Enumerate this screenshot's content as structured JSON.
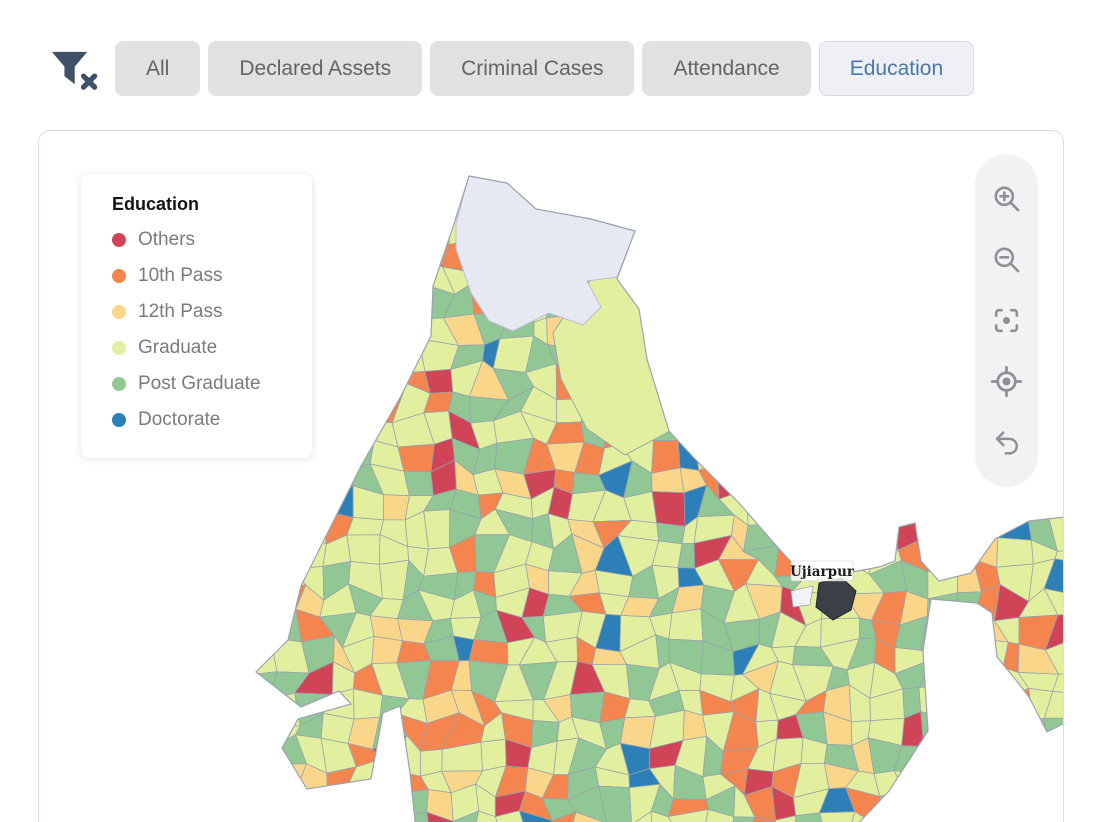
{
  "toolbar": {
    "filter_icon": "filter-clear-icon",
    "tabs": [
      {
        "label": "All",
        "active": false
      },
      {
        "label": "Declared Assets",
        "active": false
      },
      {
        "label": "Criminal Cases",
        "active": false
      },
      {
        "label": "Attendance",
        "active": false
      },
      {
        "label": "Education",
        "active": true
      }
    ],
    "active_tab_color": "#4a76a8"
  },
  "legend": {
    "title": "Education",
    "items": [
      {
        "label": "Others",
        "color": "#d04458"
      },
      {
        "label": "10th Pass",
        "color": "#f5854f"
      },
      {
        "label": "12th Pass",
        "color": "#f9d68a"
      },
      {
        "label": "Graduate",
        "color": "#e2ef9e"
      },
      {
        "label": "Post Graduate",
        "color": "#90c794"
      },
      {
        "label": "Doctorate",
        "color": "#2d7fb8"
      }
    ]
  },
  "map": {
    "tooltip": {
      "label": "Ujiarpur"
    },
    "highlighted_constituency": {
      "name": "Ujiarpur",
      "color": "#3a4046"
    },
    "no_data_color": "#e7e9f2",
    "no_data_border": "#b8bed0",
    "cell_border_color": "#97a1ac",
    "outline_color": "#9aa3ae",
    "sea_color": "#ffffff",
    "controls": [
      {
        "name": "zoom-in"
      },
      {
        "name": "zoom-out"
      },
      {
        "name": "center-map"
      },
      {
        "name": "locate"
      },
      {
        "name": "reset-view"
      }
    ]
  },
  "chart_data": {
    "type": "choropleth",
    "region": "India parliamentary constituencies",
    "measure": "Education",
    "categories": [
      "Others",
      "10th Pass",
      "12th Pass",
      "Graduate",
      "Post Graduate",
      "Doctorate"
    ],
    "colors": [
      "#d04458",
      "#f5854f",
      "#f9d68a",
      "#e2ef9e",
      "#90c794",
      "#2d7fb8"
    ],
    "approx_share": [
      0.08,
      0.09,
      0.13,
      0.4,
      0.26,
      0.04
    ],
    "no_data_regions": [
      "Jammu & Kashmir"
    ],
    "highlighted": "Ujiarpur",
    "legend_position": "top-left"
  }
}
